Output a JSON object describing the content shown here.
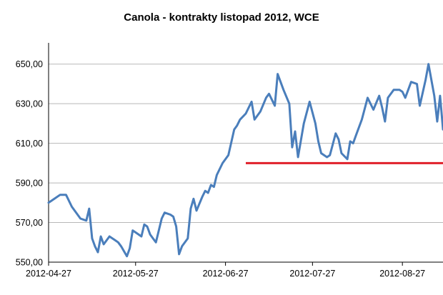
{
  "chart_data": {
    "type": "line",
    "title": "Canola - kontrakty listopad 2012, WCE",
    "xlabel": "",
    "ylabel": "",
    "ylim": [
      550,
      660
    ],
    "y_ticks": [
      "550,00",
      "570,00",
      "590,00",
      "610,00",
      "630,00",
      "650,00"
    ],
    "y_tick_values": [
      550,
      570,
      590,
      610,
      630,
      650
    ],
    "x_tick_labels": [
      "2012-04-27",
      "2012-05-27",
      "2012-06-27",
      "2012-07-27",
      "2012-08-27"
    ],
    "x_tick_dates": [
      "2012-04-27",
      "2012-05-27",
      "2012-06-27",
      "2012-07-27",
      "2012-08-27"
    ],
    "xlim": [
      "2012-04-27",
      "2012-09-10"
    ],
    "grid": true,
    "legend": "none",
    "series": [
      {
        "color": "#4a7ebb",
        "x": [
          "2012-04-27",
          "2012-04-29",
          "2012-05-01",
          "2012-05-03",
          "2012-05-05",
          "2012-05-06",
          "2012-05-08",
          "2012-05-10",
          "2012-05-11",
          "2012-05-12",
          "2012-05-13",
          "2012-05-14",
          "2012-05-15",
          "2012-05-16",
          "2012-05-18",
          "2012-05-19",
          "2012-05-20",
          "2012-05-21",
          "2012-05-22",
          "2012-05-24",
          "2012-05-25",
          "2012-05-26",
          "2012-05-27",
          "2012-05-29",
          "2012-05-30",
          "2012-05-31",
          "2012-06-01",
          "2012-06-02",
          "2012-06-03",
          "2012-06-05",
          "2012-06-06",
          "2012-06-08",
          "2012-06-09",
          "2012-06-10",
          "2012-06-11",
          "2012-06-12",
          "2012-06-14",
          "2012-06-15",
          "2012-06-16",
          "2012-06-17",
          "2012-06-19",
          "2012-06-20",
          "2012-06-21",
          "2012-06-22",
          "2012-06-23",
          "2012-06-24",
          "2012-06-26",
          "2012-06-28",
          "2012-06-30",
          "2012-07-01",
          "2012-07-02",
          "2012-07-04",
          "2012-07-06",
          "2012-07-07",
          "2012-07-09",
          "2012-07-11",
          "2012-07-12",
          "2012-07-14",
          "2012-07-15",
          "2012-07-17",
          "2012-07-19",
          "2012-07-20",
          "2012-07-21",
          "2012-07-22",
          "2012-07-24",
          "2012-07-26",
          "2012-07-28",
          "2012-07-29",
          "2012-07-30",
          "2012-08-01",
          "2012-08-02",
          "2012-08-04",
          "2012-08-05",
          "2012-08-06",
          "2012-08-08",
          "2012-08-09",
          "2012-08-10",
          "2012-08-11",
          "2012-08-13",
          "2012-08-15",
          "2012-08-17",
          "2012-08-19",
          "2012-08-20",
          "2012-08-21",
          "2012-08-22",
          "2012-08-24",
          "2012-08-26",
          "2012-08-27",
          "2012-08-28",
          "2012-08-30",
          "2012-09-01",
          "2012-09-02",
          "2012-09-04",
          "2012-09-05",
          "2012-09-07",
          "2012-09-08",
          "2012-09-09",
          "2012-09-10"
        ],
        "values": [
          580,
          582,
          584,
          584,
          578,
          576,
          572,
          571,
          577,
          562,
          558,
          555,
          563,
          559,
          563,
          562,
          561,
          560,
          558,
          553,
          557,
          566,
          565,
          563,
          569,
          568,
          564,
          562,
          560,
          572,
          575,
          574,
          573,
          568,
          554,
          558,
          562,
          577,
          582,
          576,
          583,
          586,
          585,
          589,
          588,
          594,
          600,
          604,
          617,
          619,
          622,
          625,
          631,
          622,
          626,
          633,
          635,
          629,
          645,
          637,
          630,
          608,
          616,
          603,
          620,
          631,
          620,
          611,
          605,
          603,
          604,
          615,
          612,
          605,
          602,
          611,
          610,
          614,
          622,
          633,
          627,
          634,
          628,
          621,
          633,
          637,
          637,
          636,
          633,
          641,
          640,
          629,
          642,
          650,
          634,
          621,
          634,
          617
        ]
      }
    ],
    "reference_line": {
      "value": 600,
      "x_start": "2012-07-04",
      "x_end": "2012-09-10",
      "color": "#e0202a"
    },
    "colors": {
      "series": "#4a7ebb",
      "reference": "#e0202a",
      "grid": "#b8b8b8",
      "axis": "#000000"
    }
  }
}
